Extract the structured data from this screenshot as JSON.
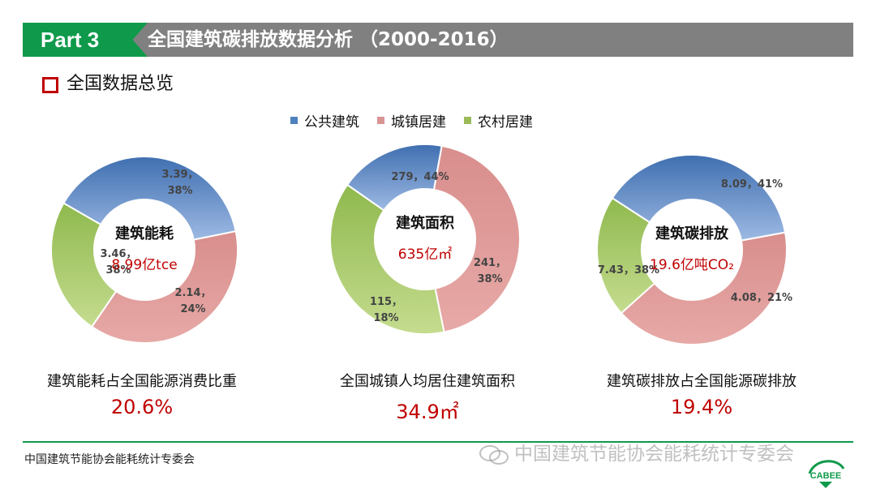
{
  "header": {
    "part": "Part 3",
    "title": "全国建筑碳排放数据分析 （2000-2016）"
  },
  "section": {
    "title": "全国数据总览"
  },
  "legend": [
    {
      "label": "公共建筑",
      "color": "#4f81bd"
    },
    {
      "label": "城镇居建",
      "color": "#d99594"
    },
    {
      "label": "农村居建",
      "color": "#9bbb59"
    }
  ],
  "chart_data": [
    {
      "type": "pie",
      "center_title": "建筑能耗",
      "center_value": "8.99亿tce",
      "slices": [
        {
          "name": "公共建筑",
          "value": 3.46,
          "percent": 38,
          "label": [
            "3.46，",
            "38%"
          ]
        },
        {
          "name": "城镇居建",
          "value": 3.39,
          "percent": 38,
          "label": [
            "3.39，",
            "38%"
          ]
        },
        {
          "name": "农村居建",
          "value": 2.14,
          "percent": 24,
          "label": [
            "2.14，",
            "24%"
          ]
        }
      ],
      "caption": "建筑能耗占全国能源消费比重",
      "highlight": "20.6%"
    },
    {
      "type": "pie",
      "center_title": "建筑面积",
      "center_value": "635亿㎡",
      "slices": [
        {
          "name": "公共建筑",
          "value": 115,
          "percent": 18,
          "label": [
            "115，",
            "18%"
          ]
        },
        {
          "name": "城镇居建",
          "value": 279,
          "percent": 44,
          "label": [
            "279，44%"
          ]
        },
        {
          "name": "农村居建",
          "value": 241,
          "percent": 38,
          "label": [
            "241，",
            "38%"
          ]
        }
      ],
      "caption": "全国城镇人均居住建筑面积",
      "highlight": "34.9㎡"
    },
    {
      "type": "pie",
      "center_title": "建筑碳排放",
      "center_value": "19.6亿吨CO₂",
      "slices": [
        {
          "name": "公共建筑",
          "value": 7.43,
          "percent": 38,
          "label": [
            "7.43，38%"
          ]
        },
        {
          "name": "城镇居建",
          "value": 8.09,
          "percent": 41,
          "label": [
            "8.09，41%"
          ]
        },
        {
          "name": "农村居建",
          "value": 4.08,
          "percent": 21,
          "label": [
            "4.08，21%"
          ]
        }
      ],
      "caption": "建筑碳排放占全国能源碳排放",
      "highlight": "19.4%"
    }
  ],
  "footer": {
    "org": "中国建筑节能协会能耗统计专委会",
    "watermark": "中国建筑节能协会能耗统计专委会",
    "logo_text": "CABEE"
  }
}
